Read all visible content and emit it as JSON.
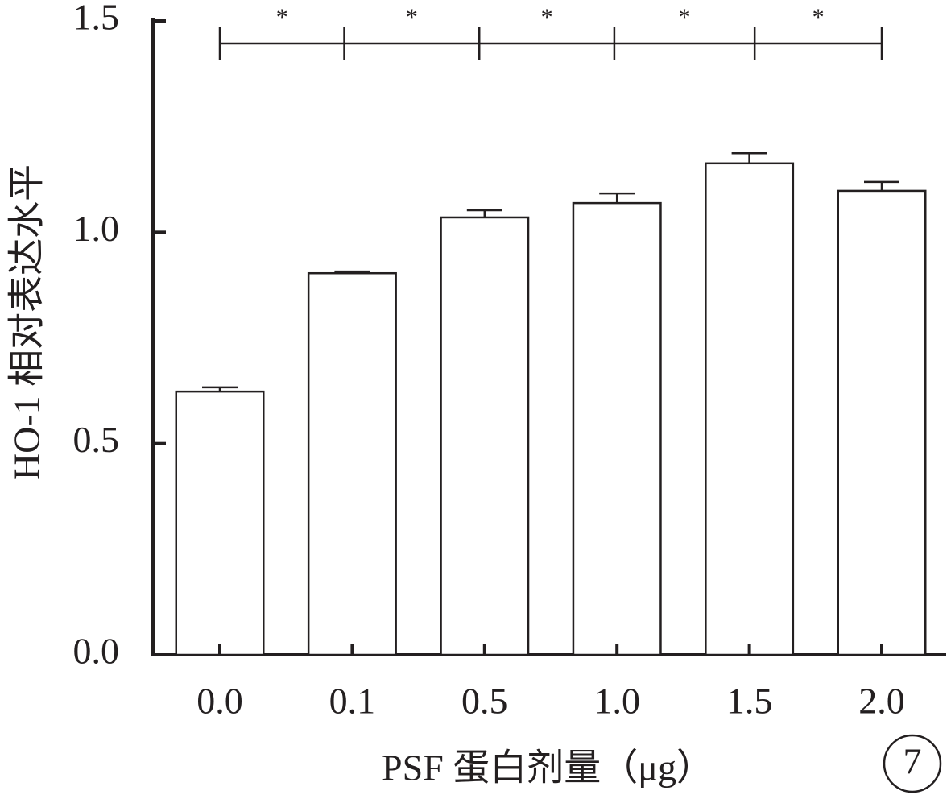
{
  "chart_data": {
    "type": "bar",
    "y_label": "HO-1 相对表达水平",
    "x_label": "PSF 蛋白剂量（μg）",
    "categories": [
      "0.0",
      "0.1",
      "0.5",
      "1.0",
      "1.5",
      "2.0"
    ],
    "values": [
      0.623,
      0.903,
      1.035,
      1.069,
      1.163,
      1.098
    ],
    "errors": [
      0.01,
      0.004,
      0.017,
      0.023,
      0.024,
      0.021
    ],
    "color": "#ffffff",
    "ylim": [
      0,
      1.5
    ],
    "yticks": [
      {
        "value": 0,
        "label": "0.0"
      },
      0.5,
      {
        "value": 1,
        "label": "1.0"
      },
      1.5
    ],
    "significance": [
      "*",
      "*",
      "*",
      "*",
      "*"
    ],
    "panel_label": "7"
  }
}
